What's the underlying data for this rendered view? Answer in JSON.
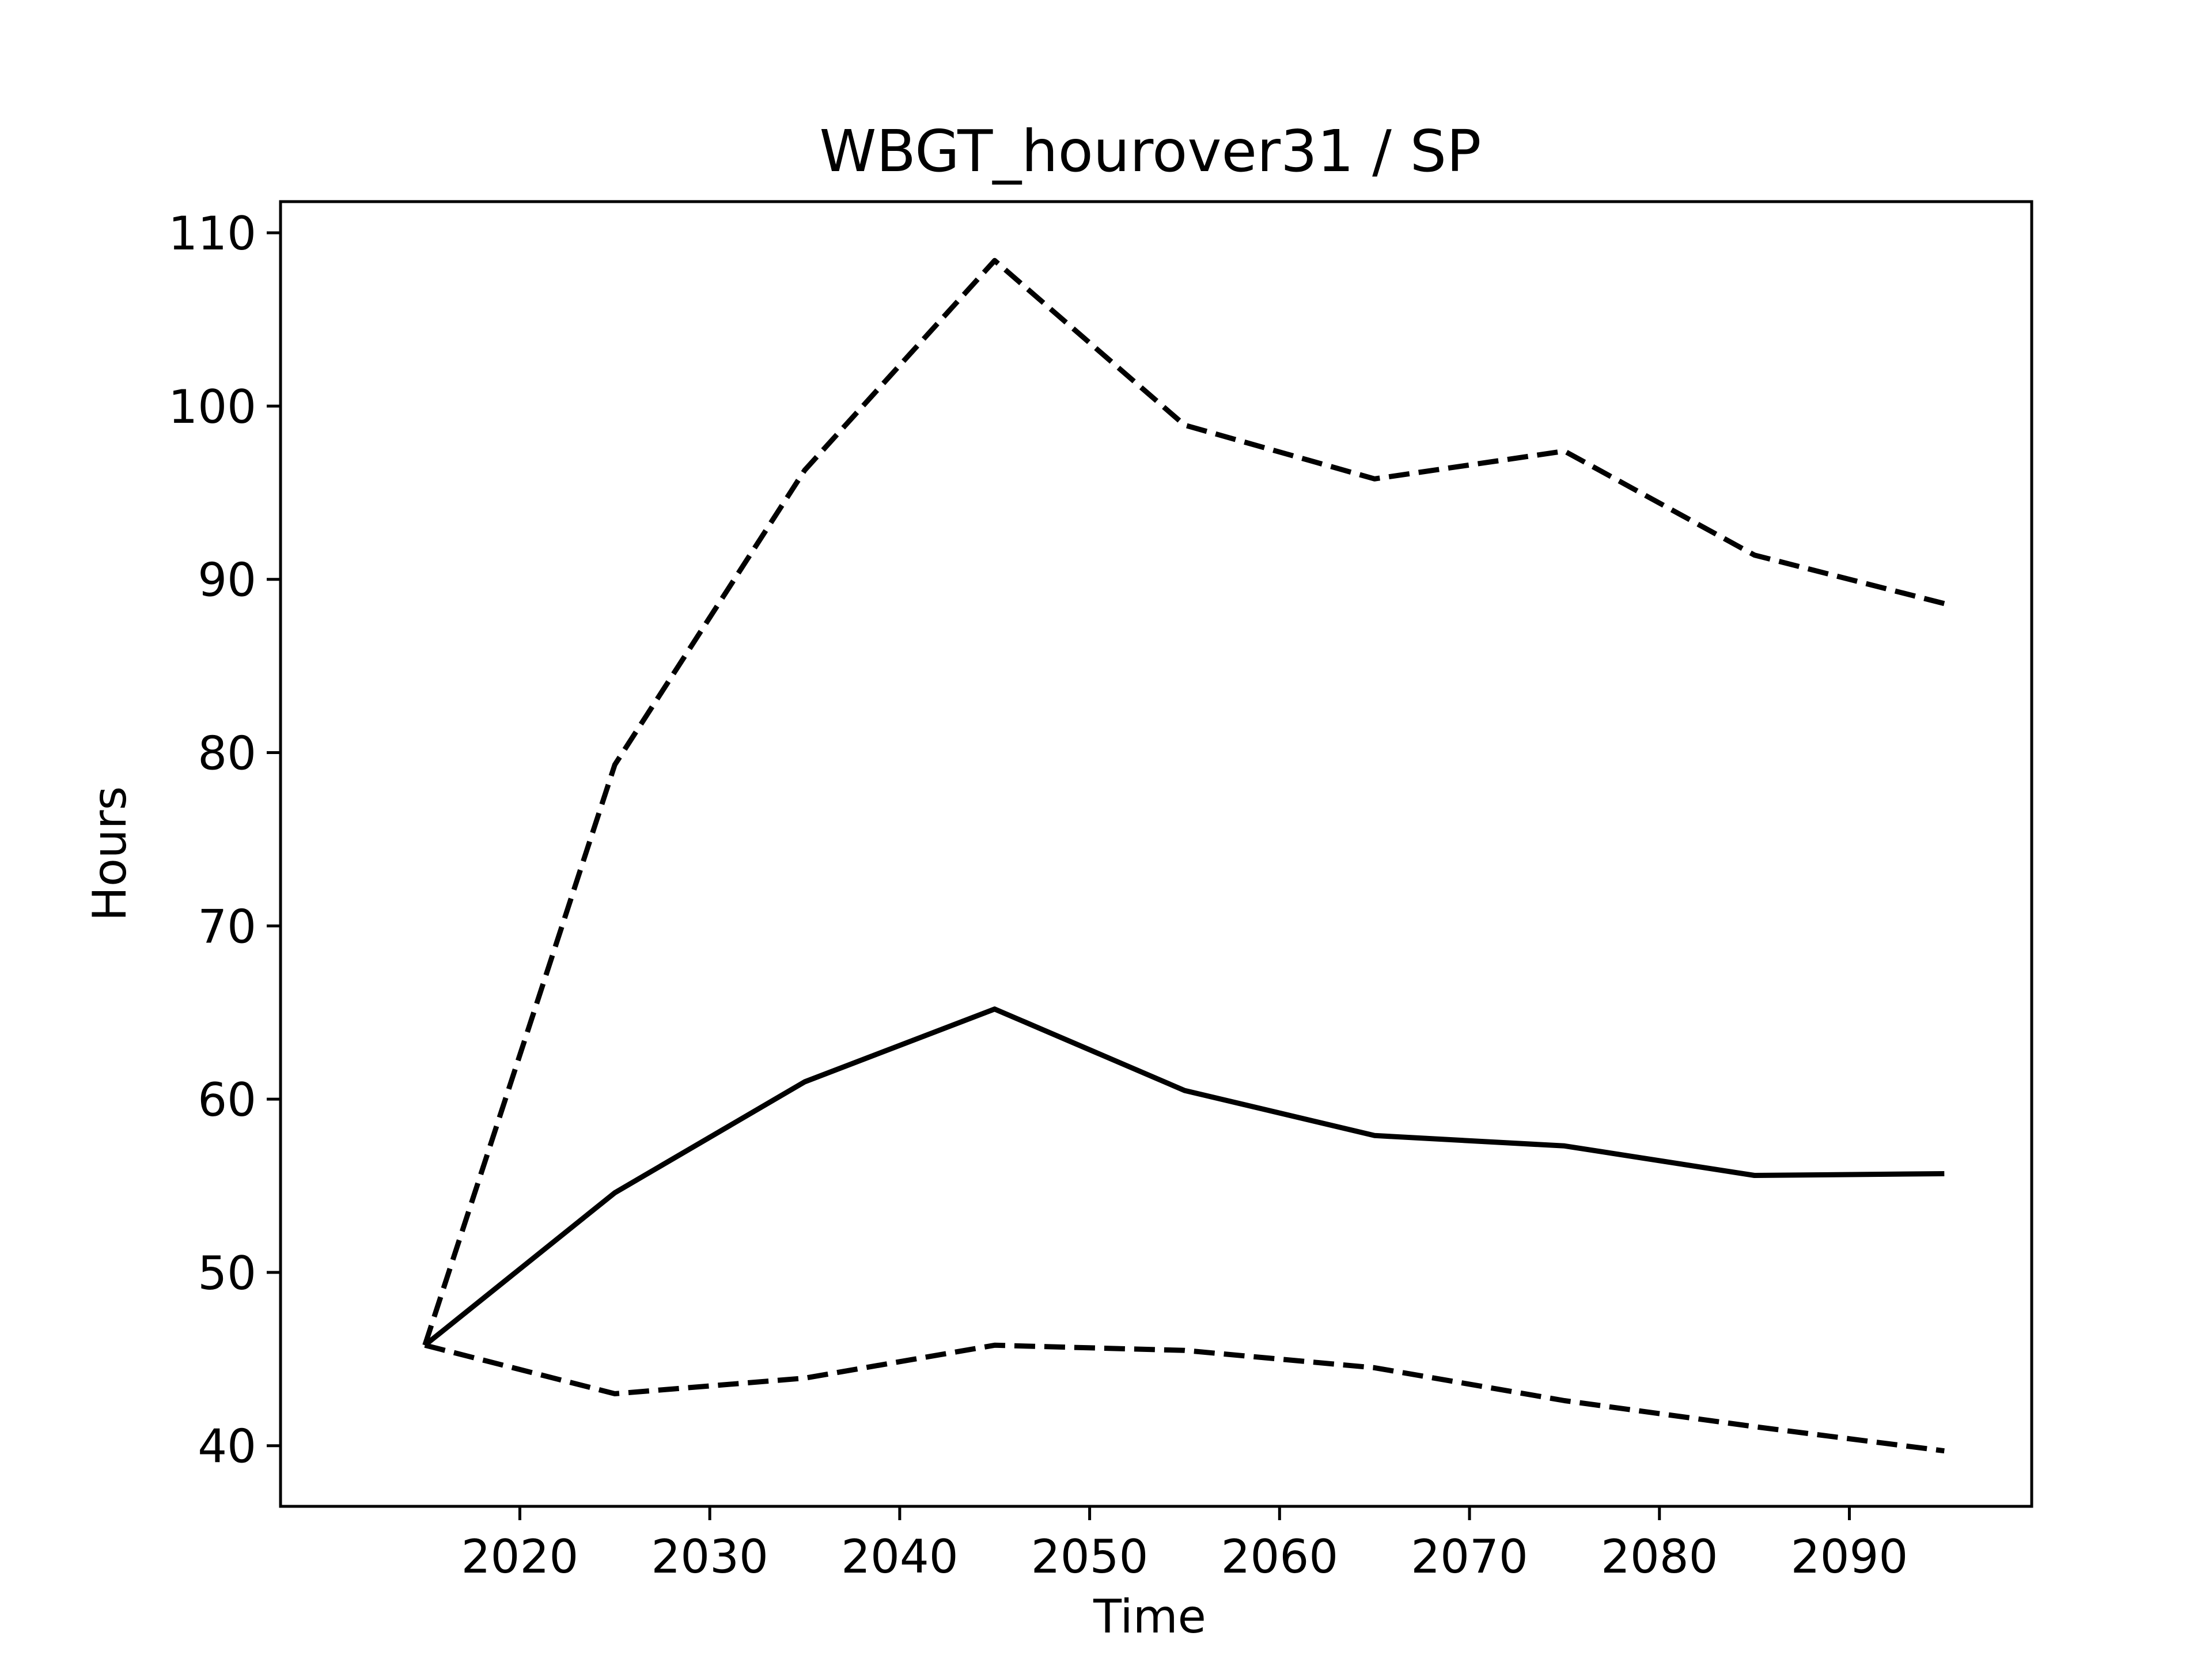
{
  "chart_data": {
    "type": "line",
    "title": "WBGT_hourover31 / SP",
    "xlabel": "Time",
    "ylabel": "Hours",
    "x": [
      2015,
      2025,
      2035,
      2045,
      2055,
      2065,
      2075,
      2085,
      2095
    ],
    "xlim": [
      2007.4,
      2099.6
    ],
    "ylim": [
      36.5,
      111.8
    ],
    "xticks": [
      2020,
      2030,
      2040,
      2050,
      2060,
      2070,
      2080,
      2090
    ],
    "yticks": [
      40,
      50,
      60,
      70,
      80,
      90,
      100,
      110
    ],
    "grid": false,
    "legend": null,
    "series": [
      {
        "style": "solid",
        "color": "#000000",
        "values": [
          45.8,
          54.6,
          61.0,
          65.2,
          60.5,
          57.9,
          57.3,
          55.6,
          55.7
        ]
      },
      {
        "style": "dashed",
        "color": "#000000",
        "values": [
          45.8,
          79.3,
          96.3,
          108.4,
          98.9,
          95.8,
          97.4,
          91.4,
          88.6
        ]
      },
      {
        "style": "dashed",
        "color": "#000000",
        "values": [
          45.8,
          43.0,
          43.9,
          45.8,
          45.5,
          44.5,
          42.6,
          41.1,
          39.7
        ]
      }
    ]
  }
}
